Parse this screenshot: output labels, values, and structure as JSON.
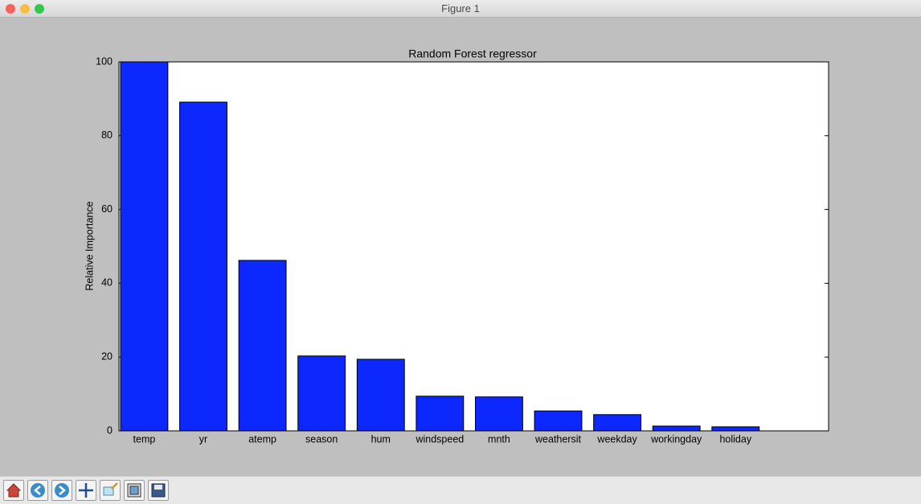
{
  "window": {
    "title": "Figure 1"
  },
  "chart_data": {
    "type": "bar",
    "title": "Random Forest regressor",
    "y_label": "Relative Importance",
    "categories": [
      "temp",
      "yr",
      "atemp",
      "season",
      "hum",
      "windspeed",
      "mnth",
      "weathersit",
      "weekday",
      "workingday",
      "holiday"
    ],
    "values": [
      100,
      89.1,
      46.2,
      20.3,
      19.4,
      9.4,
      9.2,
      5.4,
      4.4,
      1.3,
      1.1
    ],
    "color": "#0d28ff",
    "ylim": [
      0,
      100
    ],
    "yticks": [
      0,
      20,
      40,
      60,
      80,
      100
    ],
    "grid": false
  }
}
